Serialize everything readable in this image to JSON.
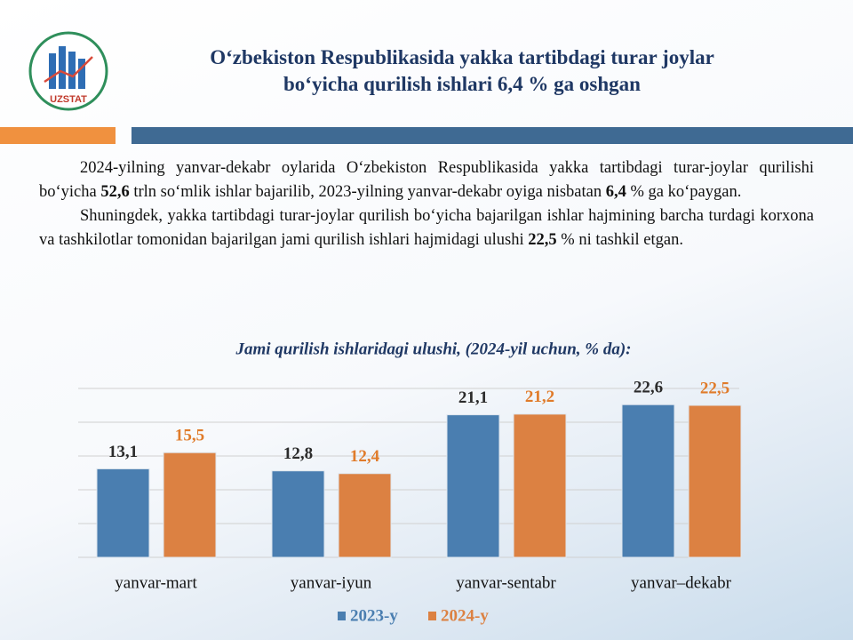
{
  "header": {
    "logo_text": "UZSTAT",
    "title": [
      "O‘zbekiston Respublikasida yakka tartibdagi turar joylar",
      "bo‘yicha qurilish ishlari 6,4 % ga oshgan"
    ]
  },
  "paragraphs": [
    [
      "2024-yilning yanvar-dekabr oylarida O‘zbekiston Respublikasida yakka tartibdagi turar-joylar qurilishi bo‘yicha ",
      "52,6",
      " trln so‘mlik ishlar bajarilib, 2023-yilning yanvar-dekabr oyiga nisbatan ",
      "6,4",
      " % ga ko‘paygan."
    ],
    [
      "Shuningdek, yakka tartibdagi turar-joylar qurilish bo‘yicha bajarilgan ishlar hajmining barcha turdagi korxona va tashkilotlar tomonidan bajarilgan jami qurilish ishlari hajmidagi ulushi ",
      "22,5",
      " % ni tashkil etgan."
    ]
  ],
  "chart_data": {
    "type": "bar",
    "title": "Jami qurilish ishlaridagi ulushi, (2024-yil  uchun, % da):",
    "categories": [
      "yanvar-mart",
      "yanvar-iyun",
      "yanvar-sentabr",
      "yanvar–dekabr"
    ],
    "series": [
      {
        "name": "2023-y",
        "color": "#4a7eb0",
        "label_color": "#2b2b2b",
        "values": [
          13.1,
          12.8,
          21.1,
          22.6
        ],
        "value_labels": [
          "13,1",
          "12,8",
          "21,1",
          "22,6"
        ]
      },
      {
        "name": "2024-y",
        "color": "#dc8142",
        "label_color": "#e07b2a",
        "values": [
          15.5,
          12.4,
          21.2,
          22.5
        ],
        "value_labels": [
          "15,5",
          "12,4",
          "21,2",
          "22,5"
        ]
      }
    ],
    "ylim": [
      0,
      25
    ],
    "yticks": [
      0,
      5,
      10,
      15,
      20,
      25
    ],
    "grid": true,
    "legend": "bottom"
  }
}
